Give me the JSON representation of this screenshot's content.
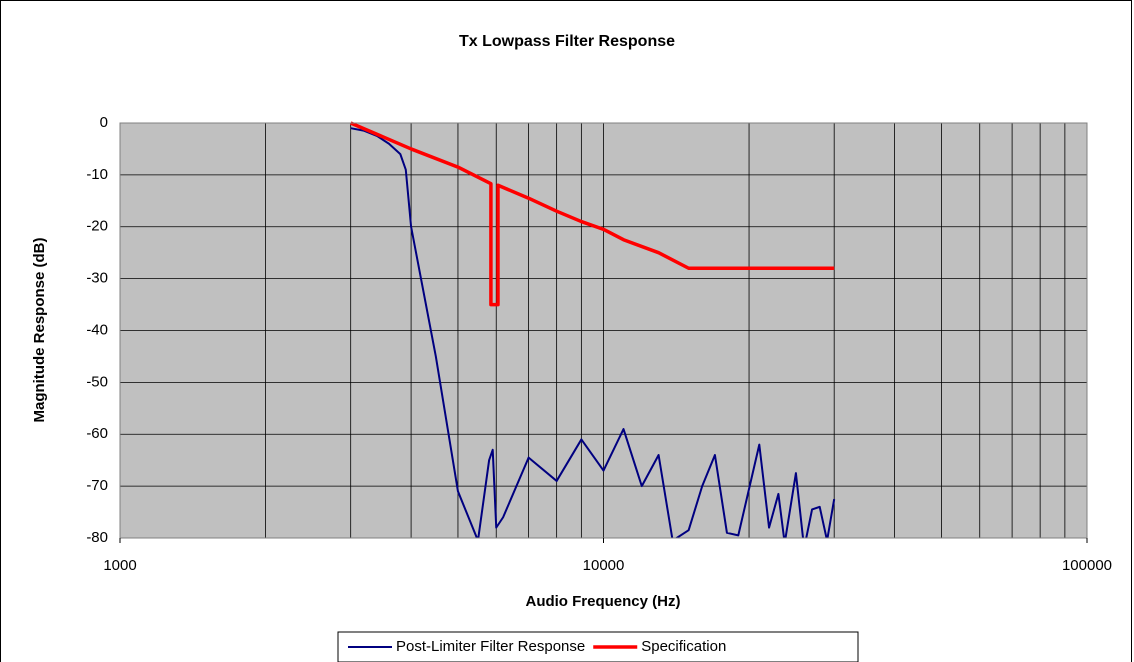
{
  "chart_data": {
    "type": "line",
    "title": "Tx Lowpass Filter Response",
    "xlabel": "Audio Frequency (Hz)",
    "ylabel": "Magnitude Response (dB)",
    "xscale": "log",
    "xlim": [
      1000,
      100000
    ],
    "ylim": [
      -80,
      0
    ],
    "xticks": [
      1000,
      10000,
      100000
    ],
    "xgrid": [
      1000,
      2000,
      3000,
      4000,
      5000,
      6000,
      7000,
      8000,
      9000,
      10000,
      20000,
      30000,
      40000,
      50000,
      60000,
      70000,
      80000,
      90000,
      100000
    ],
    "yticks": [
      0,
      -10,
      -20,
      -30,
      -40,
      -50,
      -60,
      -70,
      -80
    ],
    "grid": true,
    "legend": "bottom",
    "series": [
      {
        "name": "Post-Limiter Filter Response",
        "color": "#000080",
        "x": [
          3000,
          3200,
          3400,
          3600,
          3800,
          3900,
          4000,
          4500,
          5000,
          5500,
          5800,
          5900,
          6000,
          6200,
          7000,
          8000,
          9000,
          10000,
          11000,
          12000,
          13000,
          13900,
          15000,
          16000,
          17000,
          18000,
          19000,
          21000,
          22000,
          23000,
          23700,
          25000,
          26000,
          27000,
          28000,
          29000,
          30000
        ],
        "values": [
          -1,
          -1.5,
          -2.5,
          -4,
          -6,
          -9,
          -20,
          -45,
          -71,
          -80.5,
          -65,
          -63,
          -78,
          -76,
          -64.5,
          -69,
          -61,
          -67,
          -59,
          -70,
          -64,
          -80.5,
          -78.5,
          -70,
          -64,
          -79,
          -79.5,
          -62,
          -78,
          -71.5,
          -81,
          -67.5,
          -82,
          -74.5,
          -74,
          -80.5,
          -72.5
        ]
      },
      {
        "name": "Specification",
        "color": "#ff0000",
        "x": [
          3000,
          4000,
          5000,
          5850,
          5850,
          6050,
          6050,
          7000,
          8000,
          9000,
          10000,
          11000,
          13000,
          15000,
          30000
        ],
        "values": [
          0,
          -5,
          -8.5,
          -11.7,
          -35,
          -35,
          -12,
          -14.5,
          -17,
          -19,
          -20.5,
          -22.5,
          -25,
          -28,
          -28
        ]
      }
    ]
  }
}
